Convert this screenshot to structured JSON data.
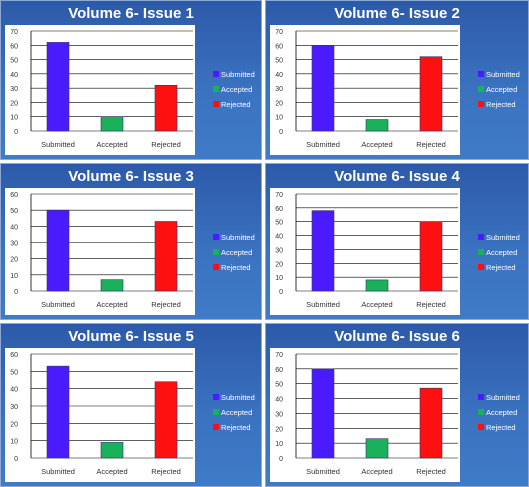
{
  "colors": {
    "submitted": "#4a1bff",
    "accepted": "#19b25a",
    "rejected": "#ff1010",
    "panel_bg": "#3a6fbe"
  },
  "chart_data": [
    {
      "type": "bar",
      "title": "Volume 6- Issue 1",
      "categories": [
        "Submitted",
        "Accepted",
        "Rejected"
      ],
      "values": [
        62,
        10,
        32
      ],
      "legend": [
        "Submitted",
        "Accepted",
        "Rejected"
      ],
      "legend_position": "right",
      "ylim": [
        0,
        70
      ],
      "yticks": [
        "0",
        "10",
        "20",
        "30",
        "40",
        "50",
        "60",
        "70"
      ],
      "ytick_values": [
        0,
        10,
        20,
        30,
        40,
        50,
        60,
        70
      ],
      "grid": true
    },
    {
      "type": "bar",
      "title": "Volume 6- Issue 2",
      "categories": [
        "Submitted",
        "Accepted",
        "Rejected"
      ],
      "values": [
        60,
        8,
        52
      ],
      "legend": [
        "Submitted",
        "Accepted",
        "Rejected"
      ],
      "legend_position": "right",
      "ylim": [
        0,
        70
      ],
      "yticks": [
        "0",
        "10",
        "20",
        "30",
        "40",
        "50",
        "60",
        "70"
      ],
      "ytick_values": [
        0,
        10,
        20,
        30,
        40,
        50,
        60,
        70
      ],
      "grid": true
    },
    {
      "type": "bar",
      "title": "Volume 6- Issue 3",
      "categories": [
        "Submitted",
        "Accepted",
        "Rejected"
      ],
      "values": [
        50,
        7,
        43
      ],
      "legend": [
        "Submitted",
        "Accepted",
        "Rejected"
      ],
      "legend_position": "right",
      "ylim": [
        0,
        60
      ],
      "yticks": [
        "0",
        "10",
        "20",
        "30",
        "40",
        "50",
        "60"
      ],
      "ytick_values": [
        0,
        10,
        20,
        30,
        40,
        50,
        60
      ],
      "grid": true
    },
    {
      "type": "bar",
      "title": "Volume 6- Issue 4",
      "categories": [
        "Submitted",
        "Accepted",
        "Rejected"
      ],
      "values": [
        58,
        8,
        50
      ],
      "legend": [
        "Submitted",
        "Accepted",
        "Rejected"
      ],
      "legend_position": "right",
      "ylim": [
        0,
        70
      ],
      "yticks": [
        "0",
        "10",
        "20",
        "30",
        "40",
        "50",
        "60",
        "70"
      ],
      "ytick_values": [
        0,
        10,
        20,
        30,
        40,
        50,
        60,
        70
      ],
      "grid": true
    },
    {
      "type": "bar",
      "title": "Volume 6- Issue 5",
      "categories": [
        "Submitted",
        "Accepted",
        "Rejected"
      ],
      "values": [
        53,
        9,
        44
      ],
      "legend": [
        "Submitted",
        "Accepted",
        "Rejected"
      ],
      "legend_position": "right",
      "ylim": [
        0,
        60
      ],
      "yticks": [
        "0",
        "10",
        "20",
        "30",
        "40",
        "50",
        "60"
      ],
      "ytick_values": [
        0,
        10,
        20,
        30,
        40,
        50,
        60
      ],
      "grid": true
    },
    {
      "type": "bar",
      "title": "Volume 6- Issue 6",
      "categories": [
        "Submitted",
        "Accepted",
        "Rejected"
      ],
      "values": [
        60,
        13,
        47
      ],
      "legend": [
        "Submitted",
        "Accepted",
        "Rejected"
      ],
      "legend_position": "right",
      "ylim": [
        0,
        70
      ],
      "yticks": [
        "0",
        "10",
        "20",
        "30",
        "40",
        "50",
        "60",
        "70"
      ],
      "ytick_values": [
        0,
        10,
        20,
        30,
        40,
        50,
        60,
        70
      ],
      "grid": true
    }
  ]
}
